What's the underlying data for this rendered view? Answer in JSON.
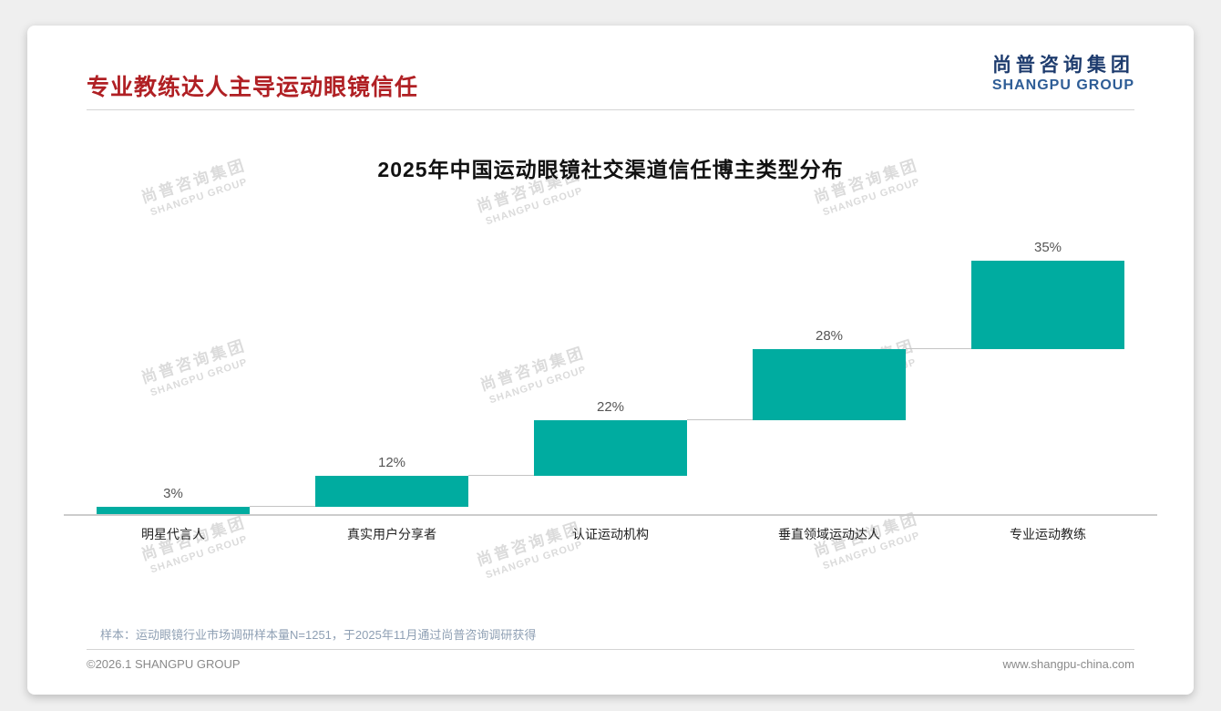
{
  "slide": {
    "title": "专业教练达人主导运动眼镜信任",
    "logo": {
      "cn": "尚普咨询集团",
      "en": "SHANGPU GROUP"
    },
    "watermark": {
      "line1": "尚普咨询集团",
      "line2": "SHANGPU GROUP"
    },
    "footnote": "样本：运动眼镜行业市场调研样本量N=1251，于2025年11月通过尚普咨询调研获得",
    "footer": {
      "left": "©2026.1 SHANGPU GROUP",
      "right": "www.shangpu-china.com"
    }
  },
  "colors": {
    "title_red": "#B02024",
    "brand_navy": "#1E3C6E",
    "brand_blue": "#2E5D96",
    "bar_teal": "#00ACA0",
    "watermark_gray": "#DBDBDB",
    "footnote_blue": "#8FA0B4"
  },
  "chart_data": {
    "type": "bar",
    "subtype": "ascending-waterfall",
    "title": "2025年中国运动眼镜社交渠道信任博主类型分布",
    "categories": [
      "明星代言人",
      "真实用户分享者",
      "认证运动机构",
      "垂直领域运动达人",
      "专业运动教练"
    ],
    "values": [
      3,
      12,
      22,
      28,
      35
    ],
    "labels": [
      "3%",
      "12%",
      "22%",
      "28%",
      "35%"
    ],
    "cumulative_top": [
      3,
      15,
      37,
      65,
      100
    ],
    "unit": "%",
    "ylim": [
      0,
      100
    ],
    "grid": false,
    "legend": false,
    "bar_color": "#00ACA0"
  }
}
